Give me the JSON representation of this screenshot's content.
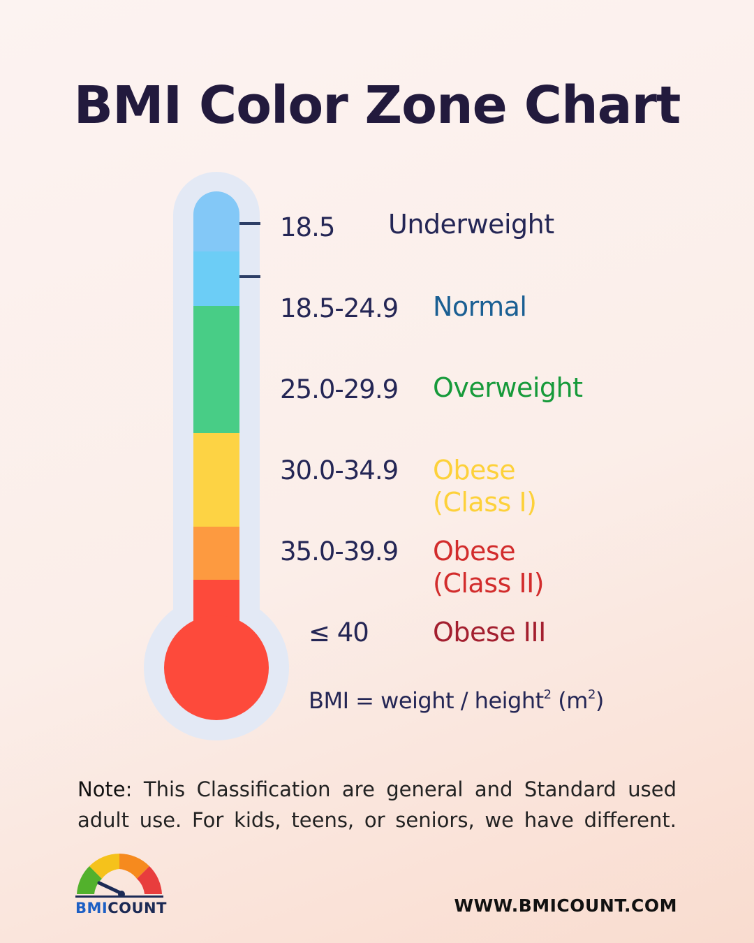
{
  "title": "BMI Color Zone Chart",
  "zones": [
    {
      "range": "18.5",
      "label": "Underweight",
      "color": "#242655"
    },
    {
      "range": "18.5-24.9",
      "label": "Normal",
      "color": "#1a5f93"
    },
    {
      "range": "25.0-29.9",
      "label": "Overweight",
      "color": "#169a3a"
    },
    {
      "range": "30.0-34.9",
      "label": "Obese\n(Class I)",
      "color": "#fdd13a"
    },
    {
      "range": "35.0-39.9",
      "label": "Obese\n(Class II)",
      "color": "#d22c2c"
    },
    {
      "range": "≤ 40",
      "label": "Obese III",
      "color": "#a31f2f"
    }
  ],
  "thermometer_colors": [
    "#83c8f7",
    "#6ccdf6",
    "#48cd86",
    "#fdd344",
    "#fd9a40",
    "#fd4a3b"
  ],
  "formula": {
    "main": "BMI = weight / height",
    "sup": "2",
    "unit_open": " (m",
    "unit_sup": "2",
    "unit_close": ")"
  },
  "note": {
    "bold": "Note",
    "text": ": This Classification are general and Standard used adult use. For kids, teens, or seniors, we have different."
  },
  "website": "WWW.BMICOUNT.COM",
  "logo": {
    "part1": "BMI",
    "part2": "COUNT"
  }
}
